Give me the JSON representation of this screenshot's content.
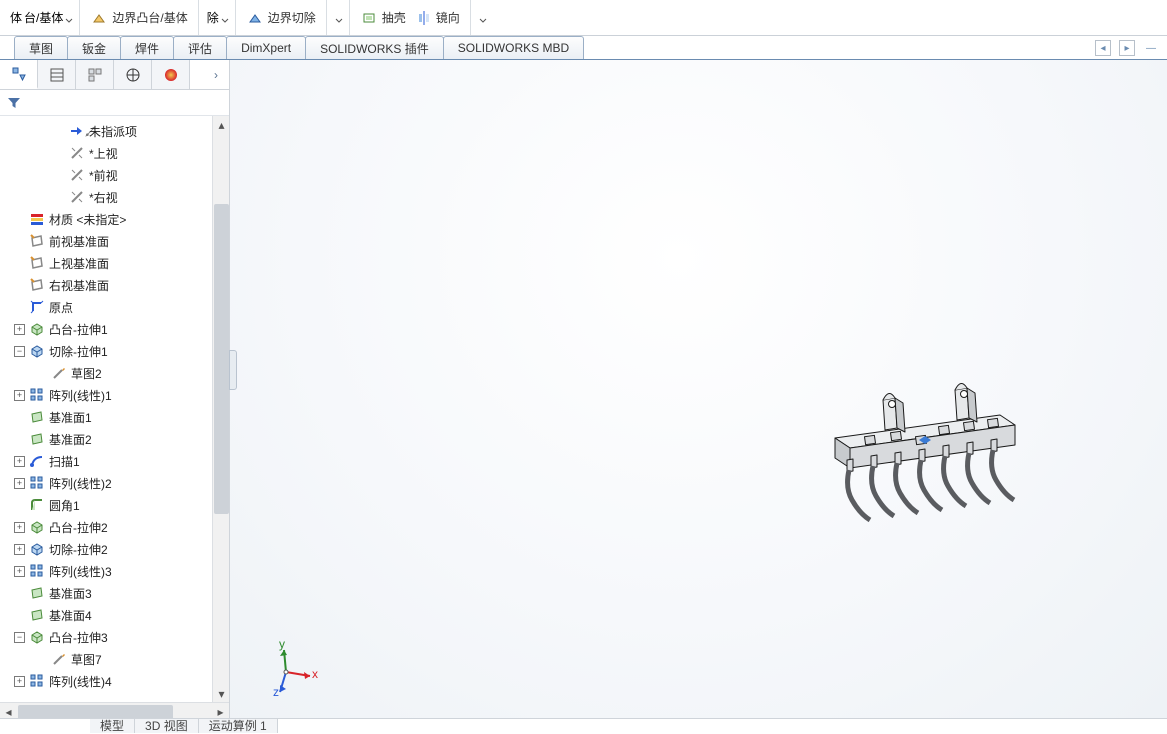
{
  "colors": {
    "border": "#cbd1d8",
    "tab_border": "#9bafc6",
    "accent_blue": "#4b71a6",
    "axis_x": "#d8232a",
    "axis_y": "#2e8b2e",
    "axis_z": "#2a5bd7"
  },
  "ribbon": {
    "left_frag1": "体",
    "left_frag2": "台/基体",
    "boundary_boss": "边界凸台/基体",
    "remove_frag": "除",
    "boundary_cut": "边界切除",
    "shell": "抽壳",
    "mirror": "镜向"
  },
  "command_tabs": [
    "草图",
    "钣金",
    "焊件",
    "评估",
    "DimXpert",
    "SOLIDWORKS 插件",
    "SOLIDWORKS MBD"
  ],
  "active_tab_index": 6,
  "feature_tree": [
    {
      "indent": 2,
      "icon": "arrow-annot",
      "label": "未指派项"
    },
    {
      "indent": 2,
      "icon": "view",
      "label": "*上视",
      "blank": true
    },
    {
      "indent": 2,
      "icon": "view",
      "label": "*前视",
      "blank": true
    },
    {
      "indent": 2,
      "icon": "view",
      "label": "*右视",
      "blank": true
    },
    {
      "indent": 0,
      "icon": "material",
      "label": "材质 <未指定>"
    },
    {
      "indent": 0,
      "icon": "plane",
      "label": "前视基准面"
    },
    {
      "indent": 0,
      "icon": "plane",
      "label": "上视基准面"
    },
    {
      "indent": 0,
      "icon": "plane",
      "label": "右视基准面"
    },
    {
      "indent": 0,
      "icon": "origin",
      "label": "原点"
    },
    {
      "indent": 0,
      "icon": "extrude",
      "label": "凸台-拉伸1",
      "exp": "+"
    },
    {
      "indent": 0,
      "icon": "cut",
      "label": "切除-拉伸1",
      "exp": "-"
    },
    {
      "indent": 1,
      "icon": "sketch",
      "label": "草图2",
      "blank": true
    },
    {
      "indent": 0,
      "icon": "pattern",
      "label": "阵列(线性)1",
      "exp": "+"
    },
    {
      "indent": 0,
      "icon": "refplane",
      "label": "基准面1"
    },
    {
      "indent": 0,
      "icon": "refplane",
      "label": "基准面2"
    },
    {
      "indent": 0,
      "icon": "sweep",
      "label": "扫描1",
      "exp": "+"
    },
    {
      "indent": 0,
      "icon": "pattern",
      "label": "阵列(线性)2",
      "exp": "+"
    },
    {
      "indent": 0,
      "icon": "fillet",
      "label": "圆角1"
    },
    {
      "indent": 0,
      "icon": "extrude",
      "label": "凸台-拉伸2",
      "exp": "+"
    },
    {
      "indent": 0,
      "icon": "cut",
      "label": "切除-拉伸2",
      "exp": "+"
    },
    {
      "indent": 0,
      "icon": "pattern",
      "label": "阵列(线性)3",
      "exp": "+"
    },
    {
      "indent": 0,
      "icon": "refplane",
      "label": "基准面3"
    },
    {
      "indent": 0,
      "icon": "refplane",
      "label": "基准面4"
    },
    {
      "indent": 0,
      "icon": "extrude",
      "label": "凸台-拉伸3",
      "exp": "-"
    },
    {
      "indent": 1,
      "icon": "sketch",
      "label": "草图7",
      "blank": true
    },
    {
      "indent": 0,
      "icon": "pattern",
      "label": "阵列(线性)4",
      "exp": "+"
    }
  ],
  "bottom_tabs": [
    "模型",
    "3D 视图",
    "运动算例 1"
  ],
  "triad_labels": {
    "x": "x",
    "y": "y",
    "z": "z"
  },
  "model": {
    "body_fill": "#e6e8ea",
    "body_stroke": "#1a1a1a",
    "dark_fill": "#5a5c60"
  }
}
